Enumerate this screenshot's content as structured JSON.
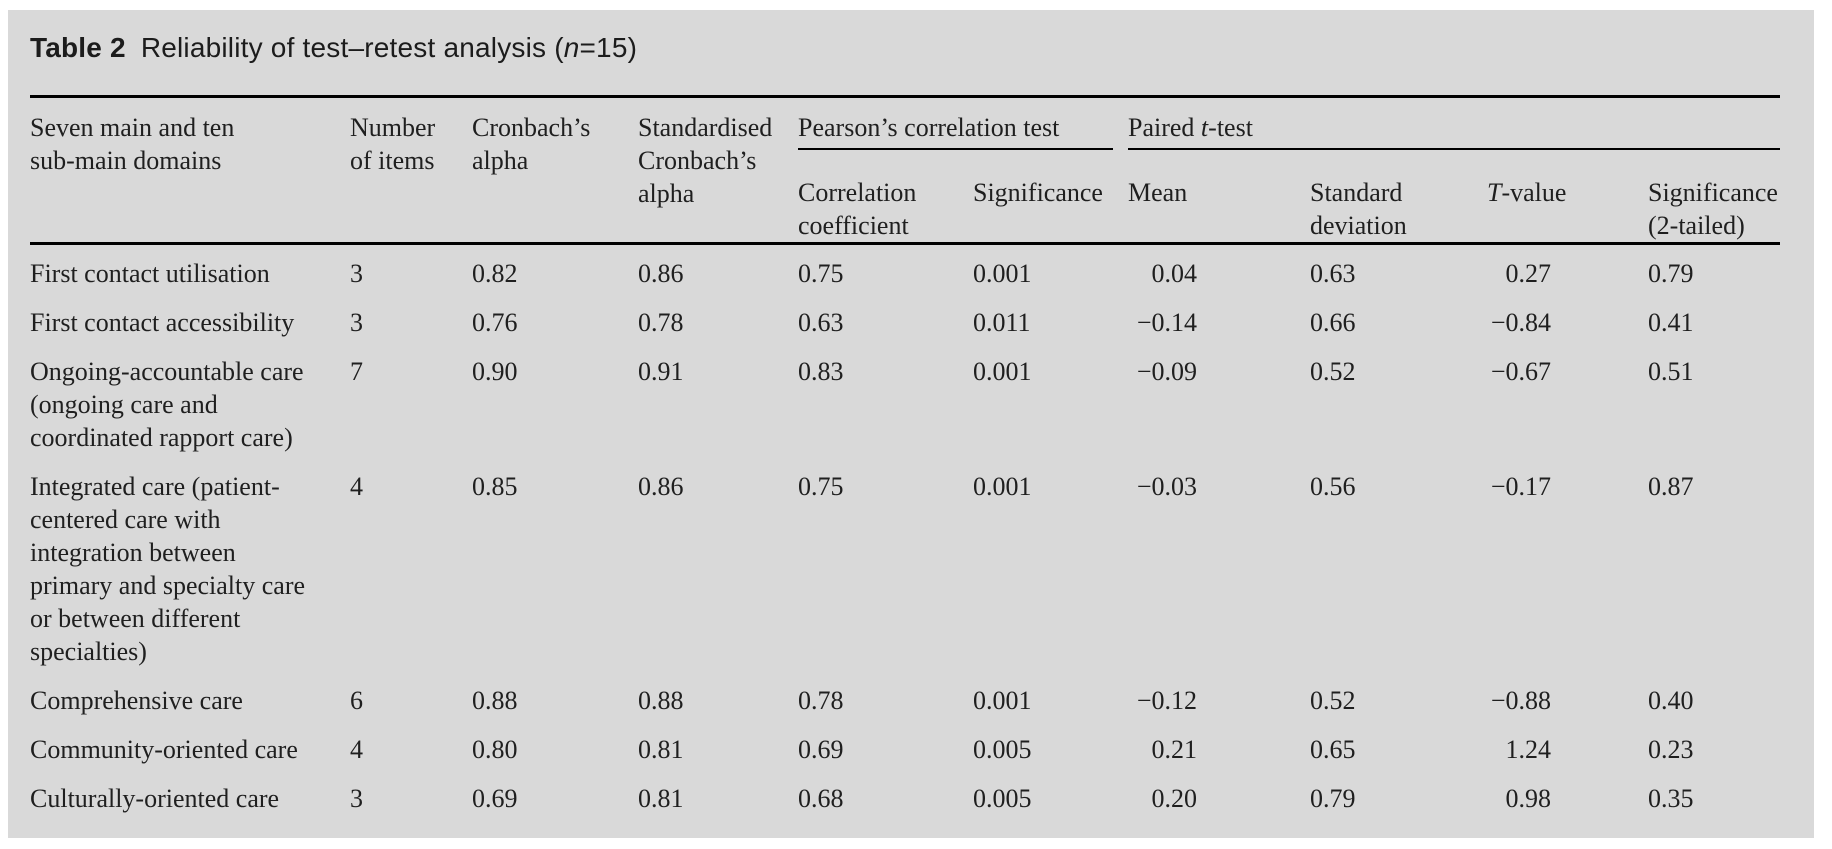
{
  "title": {
    "tag": "Table 2",
    "text_before_n": "Reliability of test–retest analysis (",
    "italic_n": "n",
    "text_after_n": "=15)"
  },
  "header": {
    "domains": "Seven main and ten\nsub-main domains",
    "items": "Number\nof items",
    "cronbach": "Cronbach’s\nalpha",
    "std_cronbach": "Standardised\nCronbach’s\nalpha",
    "pearson_group": "Pearson’s correlation test",
    "paired_group": {
      "before": "Paired ",
      "italic": "t",
      "after": "-test"
    },
    "corr_coef": "Correlation\ncoefficient",
    "significance": "Significance",
    "mean": "Mean",
    "std_dev": "Standard\ndeviation",
    "t_value": {
      "italic": "T",
      "after": "-value"
    },
    "sig_2tailed": "Significance\n(2-tailed)"
  },
  "rows": [
    {
      "domain": "First contact utilisation",
      "items": "3",
      "cronbach": "0.82",
      "std_cronbach": "0.86",
      "corr": "0.75",
      "sig": "0.001",
      "mean": "0.04",
      "sd": "0.63",
      "t": "0.27",
      "sig2": "0.79"
    },
    {
      "domain": "First contact accessibility",
      "items": "3",
      "cronbach": "0.76",
      "std_cronbach": "0.78",
      "corr": "0.63",
      "sig": "0.011",
      "mean": "−0.14",
      "sd": "0.66",
      "t": "−0.84",
      "sig2": "0.41"
    },
    {
      "domain": "Ongoing-accountable care\n(ongoing care and\ncoordinated rapport care)",
      "items": "7",
      "cronbach": "0.90",
      "std_cronbach": "0.91",
      "corr": "0.83",
      "sig": "0.001",
      "mean": "−0.09",
      "sd": "0.52",
      "t": "−0.67",
      "sig2": "0.51"
    },
    {
      "domain": "Integrated care (patient-\ncentered care with\nintegration between\nprimary and specialty care\nor between different\nspecialties)",
      "items": "4",
      "cronbach": "0.85",
      "std_cronbach": "0.86",
      "corr": "0.75",
      "sig": "0.001",
      "mean": "−0.03",
      "sd": "0.56",
      "t": "−0.17",
      "sig2": "0.87"
    },
    {
      "domain": "Comprehensive care",
      "items": "6",
      "cronbach": "0.88",
      "std_cronbach": "0.88",
      "corr": "0.78",
      "sig": "0.001",
      "mean": "−0.12",
      "sd": "0.52",
      "t": "−0.88",
      "sig2": "0.40"
    },
    {
      "domain": "Community-oriented care",
      "items": "4",
      "cronbach": "0.80",
      "std_cronbach": "0.81",
      "corr": "0.69",
      "sig": "0.005",
      "mean": "0.21",
      "sd": "0.65",
      "t": "1.24",
      "sig2": "0.23"
    },
    {
      "domain": "Culturally-oriented care",
      "items": "3",
      "cronbach": "0.69",
      "std_cronbach": "0.81",
      "corr": "0.68",
      "sig": "0.005",
      "mean": "0.20",
      "sd": "0.79",
      "t": "0.98",
      "sig2": "0.35"
    }
  ]
}
